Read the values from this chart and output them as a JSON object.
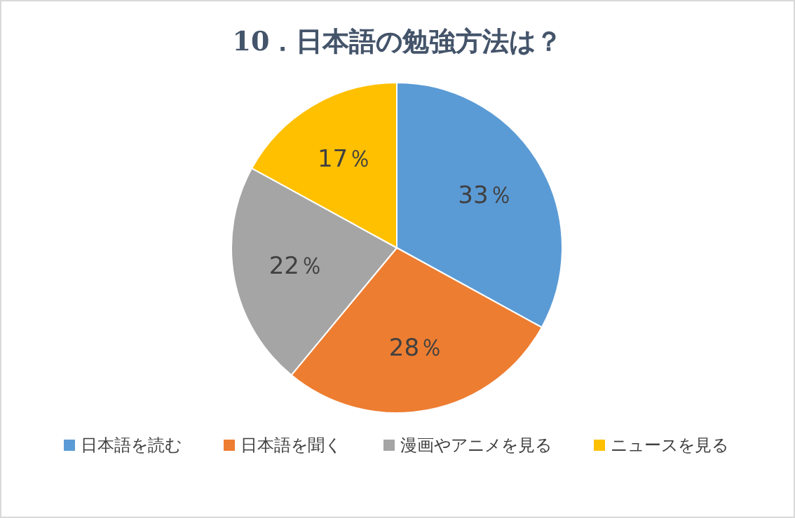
{
  "chart_data": {
    "type": "pie",
    "title": "10．日本語の勉強方法は？",
    "categories": [
      "日本語を読む",
      "日本語を聞く",
      "漫画やアニメを見る",
      "ニュースを見る"
    ],
    "values": [
      33,
      28,
      22,
      17
    ],
    "colors": [
      "#5b9bd5",
      "#ed7d31",
      "#a5a5a5",
      "#ffc000"
    ],
    "value_labels": [
      "33％",
      "28％",
      "22％",
      "17％"
    ],
    "legend": "bottom"
  }
}
